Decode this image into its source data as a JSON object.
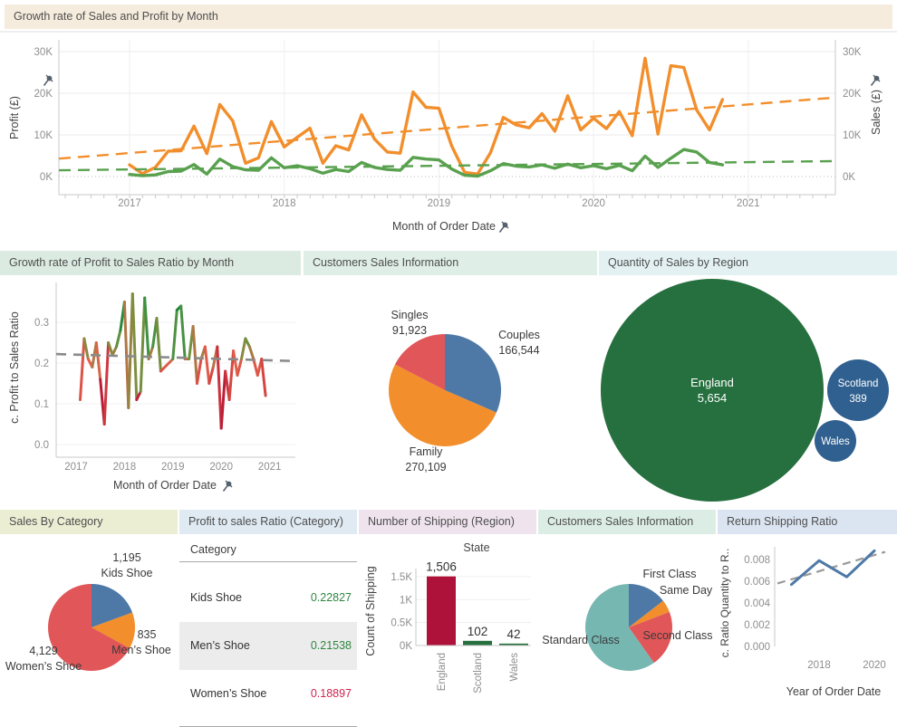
{
  "chart_data": [
    {
      "type": "line",
      "title": "Growth rate of Sales and Profit by Month",
      "header_bg": "#f5ecdd",
      "left_axis_label": "Profit (£)",
      "right_axis_label": "Sales (£)",
      "x_axis_label": "Month of Order Date",
      "y_ticks": [
        "0K",
        "10K",
        "20K",
        "30K"
      ],
      "ylim_k": [
        0,
        32
      ],
      "year_ticks": [
        "2017",
        "2018",
        "2019",
        "2020",
        "2021"
      ],
      "x_start": "2017-01",
      "legend_position": "none",
      "grid": true,
      "series": [
        {
          "name": "Sales (£)",
          "color": "#f28e2b",
          "units": "K£",
          "values": [
            2.8,
            0.7,
            2.2,
            6.1,
            6.2,
            12.1,
            5.5,
            17.3,
            13.4,
            3.2,
            4.5,
            13.2,
            7.1,
            9.4,
            11.6,
            3.2,
            7.4,
            6.4,
            14.8,
            9.0,
            5.9,
            5.6,
            20.3,
            16.6,
            16.4,
            7.3,
            1.0,
            0.6,
            5.7,
            14.2,
            12.4,
            11.7,
            15.1,
            10.9,
            19.4,
            11.2,
            14.0,
            11.5,
            15.6,
            9.8,
            28.4,
            10.2,
            26.6,
            26.2,
            16.0,
            11.2,
            18.5
          ]
        },
        {
          "name": "Profit (£)",
          "color": "#59a14f",
          "units": "K£",
          "values": [
            0.5,
            0.2,
            0.4,
            1.2,
            1.3,
            2.9,
            0.6,
            4.2,
            2.4,
            1.6,
            1.5,
            4.5,
            2.1,
            2.6,
            1.9,
            0.8,
            1.7,
            1.2,
            3.4,
            2.2,
            1.7,
            1.5,
            4.6,
            4.2,
            4.0,
            1.8,
            0.3,
            0.1,
            1.4,
            3.1,
            2.5,
            2.3,
            2.8,
            2.0,
            3.0,
            2.1,
            2.6,
            1.9,
            2.7,
            1.4,
            4.9,
            2.2,
            4.4,
            6.5,
            5.9,
            3.4,
            2.8
          ]
        }
      ],
      "trends": [
        {
          "series": "Sales (£)",
          "color": "#f28e2b",
          "start_k": 4.3,
          "end_k": 18.9
        },
        {
          "series": "Profit (£)",
          "color": "#59a14f",
          "start_k": 1.5,
          "end_k": 3.7
        }
      ]
    },
    {
      "type": "line",
      "title": "Growth rate of Profit to Sales Ratio by Month",
      "header_bg": "#dcebe2",
      "y_axis_label": "c. Profit to Sales Ratio",
      "x_axis_label": "Month of Order Date",
      "y_ticks": [
        "0.0",
        "0.1",
        "0.2",
        "0.3"
      ],
      "ylim": [
        0,
        0.38
      ],
      "year_ticks": [
        "2017",
        "2018",
        "2019",
        "2020",
        "2021"
      ],
      "x_start": "2017-02",
      "values": [
        0.11,
        0.26,
        0.21,
        0.19,
        0.25,
        0.16,
        0.05,
        0.25,
        0.22,
        0.24,
        0.28,
        0.35,
        0.09,
        0.37,
        0.11,
        0.13,
        0.36,
        0.21,
        0.24,
        0.31,
        0.18,
        0.19,
        0.2,
        0.21,
        0.33,
        0.34,
        0.21,
        0.21,
        0.29,
        0.15,
        0.21,
        0.24,
        0.15,
        0.19,
        0.24,
        0.04,
        0.18,
        0.11,
        0.23,
        0.17,
        0.21,
        0.26,
        0.24,
        0.21,
        0.17,
        0.21,
        0.12
      ],
      "trend": {
        "color": "#8a8a8a",
        "start": 0.222,
        "end": 0.205
      },
      "color_stops": [
        [
          0.04,
          "#9c0824"
        ],
        [
          0.12,
          "#c0223b"
        ],
        [
          0.2,
          "#e2604a"
        ],
        [
          0.24,
          "#7d8f3f"
        ],
        [
          0.28,
          "#3f9243"
        ],
        [
          0.37,
          "#077a35"
        ]
      ]
    },
    {
      "type": "pie",
      "title": "Customers Sales Information",
      "header_bg": "#dfeee7",
      "slices": [
        {
          "label": "Couples",
          "value": 166544,
          "display": "166,544",
          "color": "#4e79a7"
        },
        {
          "label": "Family",
          "value": 270109,
          "display": "270,109",
          "color": "#f28e2b"
        },
        {
          "label": "Singles",
          "value": 91923,
          "display": "91,923",
          "color": "#e15759"
        }
      ]
    },
    {
      "type": "bubble",
      "title": "Quantity of Sales by Region",
      "header_bg": "#e4f1f3",
      "bubbles": [
        {
          "label": "England",
          "value": 5654,
          "display": "5,654",
          "color": "#26703f"
        },
        {
          "label": "Scotland",
          "value": 389,
          "display": "389",
          "color": "#30608f"
        },
        {
          "label": "Wales",
          "value": null,
          "display": "",
          "color": "#30608f"
        }
      ]
    },
    {
      "type": "pie",
      "title": "Sales By Category",
      "header_bg": "#ebeed3",
      "slices": [
        {
          "label": "Kids Shoe",
          "value": 1195,
          "display": "1,195",
          "color": "#4e79a7"
        },
        {
          "label": "Men’s Shoe",
          "value": 835,
          "display": "835",
          "color": "#f28e2b"
        },
        {
          "label": "Women’s Shoe",
          "value": 4129,
          "display": "4,129",
          "color": "#e15759"
        }
      ]
    },
    {
      "type": "table",
      "title": "Profit to sales Ratio (Category)",
      "header_bg": "#dfeaf2",
      "column_header": "Category",
      "rows": [
        {
          "label": "Kids Shoe",
          "value": "0.22827",
          "color": "#2e8540",
          "shaded": false
        },
        {
          "label": "Men’s Shoe",
          "value": "0.21538",
          "color": "#2e8540",
          "shaded": true
        },
        {
          "label": "Women’s Shoe",
          "value": "0.18897",
          "color": "#d0234e",
          "shaded": false
        }
      ]
    },
    {
      "type": "bar",
      "title": "Number of Shipping (Region)",
      "header_bg": "#efe4ee",
      "subtitle": "State",
      "y_axis_label": "Count of Shipping",
      "y_ticks": [
        "0K",
        "0.5K",
        "1K",
        "1.5K"
      ],
      "ylim": [
        0,
        1650
      ],
      "categories": [
        "England",
        "Scotland",
        "Wales"
      ],
      "values": [
        1506,
        102,
        42
      ],
      "displays": [
        "1,506",
        "102",
        "42"
      ],
      "bar_colors": [
        "#ae1139",
        "#26703f",
        "#26703f"
      ]
    },
    {
      "type": "pie",
      "title": "Customers Sales Information",
      "header_bg": "#dcede6",
      "slices": [
        {
          "label": "First Class",
          "value": 0.145,
          "display": "",
          "color": "#4e79a7"
        },
        {
          "label": "Same Day",
          "value": 0.047,
          "display": "",
          "color": "#f28e2b"
        },
        {
          "label": "Second Class",
          "value": 0.21,
          "display": "",
          "color": "#e15759"
        },
        {
          "label": "Standard Class",
          "value": 0.598,
          "display": "",
          "color": "#76b7b2"
        }
      ]
    },
    {
      "type": "line",
      "title": "Return Shipping Ratio",
      "header_bg": "#dbe5f1",
      "y_axis_label": "c. Ratio Quantity to R..",
      "x_axis_label": "Year of Order Date",
      "y_ticks": [
        "0.000",
        "0.002",
        "0.004",
        "0.006",
        "0.008"
      ],
      "x_ticks": [
        "2018",
        "2020"
      ],
      "x": [
        2017,
        2018,
        2019,
        2020
      ],
      "values": [
        0.0057,
        0.0079,
        0.0064,
        0.0088
      ],
      "color": "#4e79a7",
      "trend": {
        "color": "#999999",
        "start": 0.0058,
        "end": 0.0087
      }
    }
  ],
  "icons": {
    "pin": "pushpin-icon",
    "pin_color": "#55616d"
  }
}
